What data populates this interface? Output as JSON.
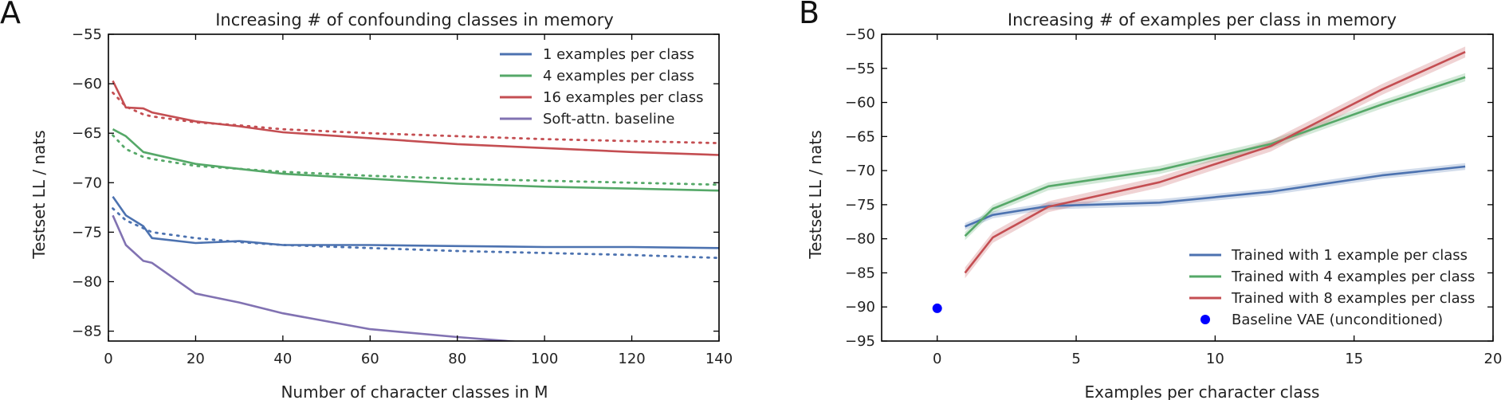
{
  "figure": {
    "panel_letters": [
      "A",
      "B"
    ]
  },
  "chart_data": [
    {
      "type": "line",
      "panel": "A",
      "title": "Increasing # of confounding classes in memory",
      "xlabel": "Number of character classes in M",
      "ylabel": "Testset LL / nats",
      "xlim": [
        0,
        140
      ],
      "ylim": [
        -86,
        -55
      ],
      "xticks": [
        0,
        20,
        40,
        60,
        80,
        100,
        120,
        140
      ],
      "yticks": [
        -85,
        -80,
        -75,
        -70,
        -65,
        -60,
        -55
      ],
      "legend_position": "top-right",
      "series": [
        {
          "name": "1 examples per class",
          "color": "#4c72b0",
          "x": [
            1,
            4,
            8,
            10,
            20,
            30,
            40,
            60,
            80,
            100,
            120,
            140
          ],
          "values": [
            -71.4,
            -73.3,
            -74.4,
            -75.6,
            -76.1,
            -75.9,
            -76.3,
            -76.3,
            -76.4,
            -76.5,
            -76.5,
            -76.6
          ]
        },
        {
          "name": "4 examples per class",
          "color": "#55a868",
          "x": [
            1,
            4,
            8,
            10,
            20,
            30,
            40,
            60,
            80,
            100,
            120,
            140
          ],
          "values": [
            -64.6,
            -65.3,
            -66.9,
            -67.1,
            -68.1,
            -68.6,
            -69.1,
            -69.6,
            -70.1,
            -70.4,
            -70.6,
            -70.8
          ]
        },
        {
          "name": "16 examples per class",
          "color": "#c44e52",
          "x": [
            1,
            4,
            8,
            10,
            20,
            30,
            40,
            60,
            80,
            100,
            120,
            140
          ],
          "values": [
            -59.7,
            -62.4,
            -62.5,
            -62.9,
            -63.8,
            -64.3,
            -64.9,
            -65.5,
            -66.1,
            -66.5,
            -66.9,
            -67.2
          ]
        },
        {
          "name": "Soft-attn. baseline",
          "color": "#8172b2",
          "x": [
            1,
            4,
            8,
            10,
            20,
            30,
            40,
            60,
            80,
            100,
            120,
            140
          ],
          "values": [
            -73.3,
            -76.3,
            -77.9,
            -78.1,
            -81.2,
            -82.1,
            -83.2,
            -84.8,
            -85.6,
            -86.3,
            -86.8,
            -87.3
          ]
        }
      ],
      "dotted_series": [
        {
          "color": "#4c72b0",
          "x": [
            1,
            4,
            8,
            10,
            20,
            30,
            40,
            60,
            80,
            100,
            120,
            140
          ],
          "values": [
            -72.6,
            -73.8,
            -74.6,
            -75.0,
            -75.6,
            -76.0,
            -76.3,
            -76.6,
            -76.9,
            -77.1,
            -77.3,
            -77.6
          ]
        },
        {
          "color": "#55a868",
          "x": [
            1,
            4,
            8,
            10,
            20,
            30,
            40,
            60,
            80,
            100,
            120,
            140
          ],
          "values": [
            -65.2,
            -66.6,
            -67.4,
            -67.6,
            -68.3,
            -68.6,
            -68.9,
            -69.3,
            -69.6,
            -69.8,
            -70.0,
            -70.2
          ]
        },
        {
          "color": "#c44e52",
          "x": [
            1,
            4,
            8,
            10,
            20,
            30,
            40,
            60,
            80,
            100,
            120,
            140
          ],
          "values": [
            -60.9,
            -62.3,
            -63.1,
            -63.3,
            -63.9,
            -64.2,
            -64.6,
            -65.0,
            -65.3,
            -65.6,
            -65.8,
            -66.0
          ]
        }
      ]
    },
    {
      "type": "line",
      "panel": "B",
      "title": "Increasing # of examples per class in memory",
      "xlabel": "Examples per character class",
      "ylabel": "Testset LL / nats",
      "xlim": [
        -2,
        20
      ],
      "ylim": [
        -95,
        -50
      ],
      "xticks": [
        0,
        5,
        10,
        15,
        20
      ],
      "yticks": [
        -95,
        -90,
        -85,
        -80,
        -75,
        -70,
        -65,
        -60,
        -55,
        -50
      ],
      "legend_position": "bottom-right",
      "series": [
        {
          "name": "Trained with 1 example per class",
          "color": "#4c72b0",
          "x": [
            1,
            2,
            4,
            8,
            12,
            16,
            19
          ],
          "values": [
            -78.2,
            -76.5,
            -75.2,
            -74.7,
            -73.1,
            -70.7,
            -69.4
          ],
          "band": 0.5
        },
        {
          "name": "Trained with 4 examples per class",
          "color": "#55a868",
          "x": [
            1,
            2,
            4,
            8,
            12,
            16,
            19
          ],
          "values": [
            -79.6,
            -75.6,
            -72.3,
            -69.9,
            -66.1,
            -60.3,
            -56.3
          ],
          "band": 0.6
        },
        {
          "name": "Trained with 8 examples per class",
          "color": "#c44e52",
          "x": [
            1,
            2,
            4,
            8,
            12,
            16,
            19
          ],
          "values": [
            -85.0,
            -79.8,
            -75.3,
            -71.7,
            -66.4,
            -58.1,
            -52.6
          ],
          "band": 0.8
        }
      ],
      "points": [
        {
          "name": "Baseline VAE (unconditioned)",
          "color": "#0000ff",
          "x": 0,
          "y": -90.2
        }
      ]
    }
  ]
}
